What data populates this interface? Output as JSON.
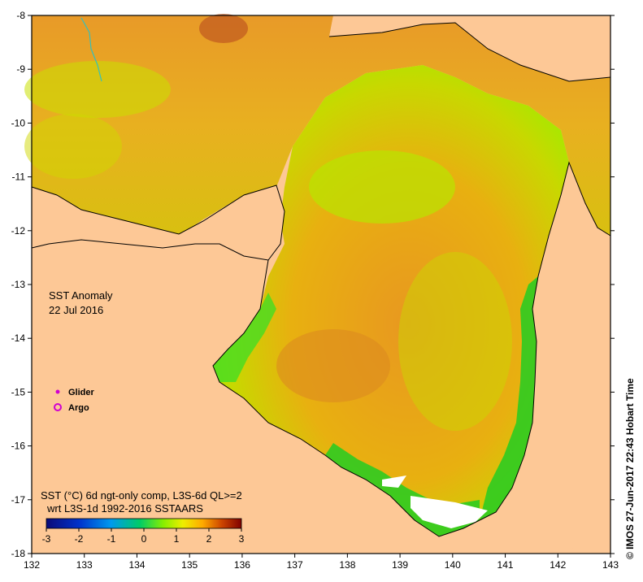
{
  "map": {
    "title": "SST Anomaly",
    "date": "22 Jul 2016",
    "x_ticks": [
      "132",
      "133",
      "134",
      "135",
      "136",
      "137",
      "138",
      "139",
      "140",
      "141",
      "142",
      "143"
    ],
    "y_ticks": [
      "-8",
      "-9",
      "-10",
      "-11",
      "-12",
      "-13",
      "-14",
      "-15",
      "-16",
      "-17",
      "-18"
    ],
    "legend": {
      "glider_label": "Glider",
      "argo_label": "Argo",
      "glider_color": "#d000d0",
      "argo_color": "#d000d0"
    },
    "caption_line1": "SST (°C) 6d ngt-only comp, L3S-6d QL>=2",
    "caption_line2": "wrt L3S-1d 1992-2016 SSTAARS",
    "colorbar_labels": [
      "-3",
      "-2",
      "-1",
      "0",
      "1",
      "2",
      "3"
    ],
    "colorbar_colors": [
      "#0a0a78",
      "#0033cc",
      "#0099ee",
      "#00cc66",
      "#88ee00",
      "#eeee00",
      "#ffaa00",
      "#cc4400",
      "#800000"
    ],
    "credit": "© IMOS 27-Jun-2017 22:43 Hobart Time",
    "colors": {
      "land": "#fdc896",
      "sea_warm": "#f0a020",
      "sea_mid": "#ddc800",
      "sea_cool": "#aaee00",
      "sea_green": "#22cc22",
      "nodata": "#ffffff"
    }
  }
}
